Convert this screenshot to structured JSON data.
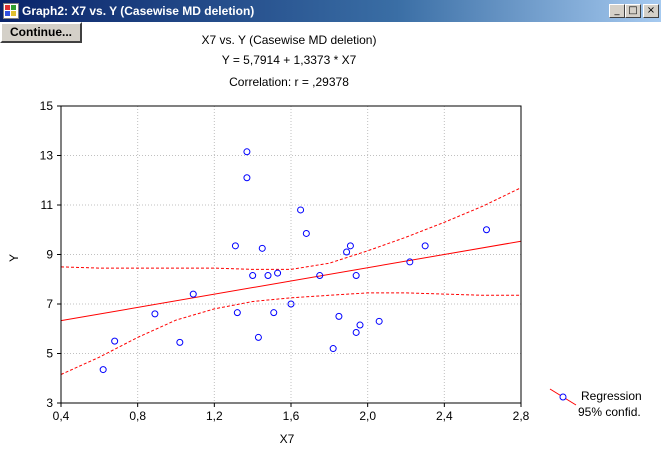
{
  "window": {
    "title": "Graph2:  X7 vs. Y (Casewise MD deletion)",
    "min_label": "_",
    "max_label": "□",
    "close_label": "×"
  },
  "toolbar": {
    "continue_label": "Continue..."
  },
  "chart_data": {
    "type": "scatter",
    "title": "X7 vs. Y (Casewise MD deletion)",
    "subtitle": "Y = 5,7914 + 1,3373 * X7",
    "subtitle2": "Correlation: r =  ,29378",
    "xlabel": "X7",
    "ylabel": "Y",
    "xlim": [
      0.4,
      2.8
    ],
    "ylim": [
      3,
      15
    ],
    "xticks": [
      0.4,
      0.8,
      1.2,
      1.6,
      2.0,
      2.4,
      2.8
    ],
    "xtick_labels": [
      "0,4",
      "0,8",
      "1,2",
      "1,6",
      "2,0",
      "2,4",
      "2,8"
    ],
    "yticks": [
      3,
      5,
      7,
      9,
      11,
      13,
      15
    ],
    "ytick_labels": [
      "3",
      "5",
      "7",
      "9",
      "11",
      "13",
      "15"
    ],
    "grid": true,
    "regression": {
      "intercept": 5.7914,
      "slope": 1.3373
    },
    "confidence_band": {
      "x": [
        0.4,
        0.6,
        0.8,
        1.0,
        1.2,
        1.4,
        1.6,
        1.8,
        2.0,
        2.2,
        2.4,
        2.6,
        2.8
      ],
      "upper": [
        8.5,
        8.45,
        8.45,
        8.45,
        8.45,
        8.4,
        8.4,
        8.65,
        9.15,
        9.7,
        10.3,
        10.95,
        11.7
      ],
      "lower": [
        4.15,
        4.85,
        5.65,
        6.35,
        6.8,
        7.1,
        7.25,
        7.35,
        7.45,
        7.45,
        7.4,
        7.35,
        7.35
      ]
    },
    "points": [
      {
        "x": 0.62,
        "y": 4.35
      },
      {
        "x": 0.68,
        "y": 5.5
      },
      {
        "x": 0.89,
        "y": 6.6
      },
      {
        "x": 1.02,
        "y": 5.45
      },
      {
        "x": 1.09,
        "y": 7.4
      },
      {
        "x": 1.31,
        "y": 9.35
      },
      {
        "x": 1.32,
        "y": 6.65
      },
      {
        "x": 1.37,
        "y": 13.15
      },
      {
        "x": 1.37,
        "y": 12.1
      },
      {
        "x": 1.4,
        "y": 8.15
      },
      {
        "x": 1.43,
        "y": 5.65
      },
      {
        "x": 1.45,
        "y": 9.25
      },
      {
        "x": 1.48,
        "y": 8.15
      },
      {
        "x": 1.51,
        "y": 6.65
      },
      {
        "x": 1.53,
        "y": 8.25
      },
      {
        "x": 1.6,
        "y": 7.0
      },
      {
        "x": 1.65,
        "y": 10.8
      },
      {
        "x": 1.68,
        "y": 9.85
      },
      {
        "x": 1.75,
        "y": 8.15
      },
      {
        "x": 1.82,
        "y": 5.2
      },
      {
        "x": 1.85,
        "y": 6.5
      },
      {
        "x": 1.89,
        "y": 9.1
      },
      {
        "x": 1.91,
        "y": 9.35
      },
      {
        "x": 1.94,
        "y": 8.15
      },
      {
        "x": 1.94,
        "y": 5.85
      },
      {
        "x": 1.96,
        "y": 6.15
      },
      {
        "x": 2.06,
        "y": 6.3
      },
      {
        "x": 2.22,
        "y": 8.7
      },
      {
        "x": 2.3,
        "y": 9.35
      },
      {
        "x": 2.62,
        "y": 10.0
      }
    ],
    "legend": {
      "placement": "bottom-right",
      "entries": [
        "Regression",
        "95% confid."
      ]
    },
    "colors": {
      "points": "#0000ff",
      "regression": "#ff0000",
      "confidence": "#ff0000"
    }
  }
}
